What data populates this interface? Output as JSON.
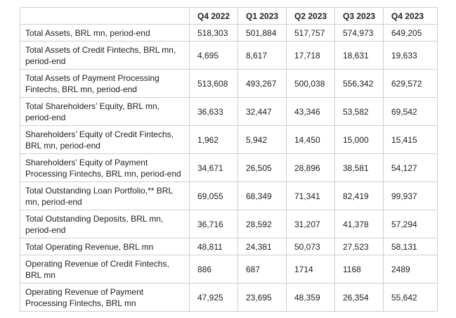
{
  "colors": {
    "background": "#ffffff",
    "grid_border": "#cbced2",
    "text": "#202124"
  },
  "table": {
    "columns": [
      "",
      "Q4 2022",
      "Q1 2023",
      "Q2 2023",
      "Q3 2023",
      "Q4 2023"
    ],
    "rows": [
      {
        "label": "Total Assets, BRL mn, period-end",
        "values": [
          "518,303",
          "501,884",
          "517,757",
          "574,973",
          "649,205"
        ]
      },
      {
        "label": "Total Assets of Credit Fintechs, BRL mn, period-end",
        "values": [
          "4,695",
          "8,617",
          "17,718",
          "18,631",
          "19,633"
        ]
      },
      {
        "label": "Total Assets of Payment Processing Fintechs, BRL mn, period-end",
        "values": [
          "513,608",
          "493,267",
          "500,038",
          "556,342",
          "629,572"
        ]
      },
      {
        "label": "Total Shareholders’ Equity, BRL mn, period-end",
        "values": [
          "36,633",
          "32,447",
          "43,346",
          "53,582",
          "69,542"
        ]
      },
      {
        "label": "Shareholders’ Equity of Credit Fintechs, BRL mn, period-end",
        "values": [
          "1,962",
          "5,942",
          "14,450",
          "15,000",
          "15,415"
        ]
      },
      {
        "label": "Shareholders’ Equity of Payment Processing Fintechs, BRL mn, period-end",
        "values": [
          "34,671",
          "26,505",
          "28,896",
          "38,581",
          "54,127"
        ]
      },
      {
        "label": "Total Outstanding Loan Portfolio,** BRL mn, period-end",
        "values": [
          "69,055",
          "68,349",
          "71,341",
          "82,419",
          "99,937"
        ]
      },
      {
        "label": "Total Outstanding Deposits, BRL mn, period-end",
        "values": [
          "36,716",
          "28,592",
          "31,207",
          "41,378",
          "57,294"
        ]
      },
      {
        "label": "Total Operating Revenue, BRL mn",
        "values": [
          "48,811",
          "24,381",
          "50,073",
          "27,523",
          "58,131"
        ]
      },
      {
        "label": "Operating Revenue of Credit Fintechs, BRL mn",
        "values": [
          "886",
          "687",
          "1714",
          "1168",
          "2489"
        ]
      },
      {
        "label": "Operating Revenue of Payment Processing Fintechs, BRL mn",
        "values": [
          "47,925",
          "23,695",
          "48,359",
          "26,354",
          "55,642"
        ]
      }
    ]
  },
  "chart_data": {
    "type": "table",
    "categories": [
      "Q4 2022",
      "Q1 2023",
      "Q2 2023",
      "Q3 2023",
      "Q4 2023"
    ],
    "series": [
      {
        "name": "Total Assets, BRL mn, period-end",
        "values": [
          518303,
          501884,
          517757,
          574973,
          649205
        ]
      },
      {
        "name": "Total Assets of Credit Fintechs, BRL mn, period-end",
        "values": [
          4695,
          8617,
          17718,
          18631,
          19633
        ]
      },
      {
        "name": "Total Assets of Payment Processing Fintechs, BRL mn, period-end",
        "values": [
          513608,
          493267,
          500038,
          556342,
          629572
        ]
      },
      {
        "name": "Total Shareholders’ Equity, BRL mn, period-end",
        "values": [
          36633,
          32447,
          43346,
          53582,
          69542
        ]
      },
      {
        "name": "Shareholders’ Equity of Credit Fintechs, BRL mn, period-end",
        "values": [
          1962,
          5942,
          14450,
          15000,
          15415
        ]
      },
      {
        "name": "Shareholders’ Equity of Payment Processing Fintechs, BRL mn, period-end",
        "values": [
          34671,
          26505,
          28896,
          38581,
          54127
        ]
      },
      {
        "name": "Total Outstanding Loan Portfolio,** BRL mn, period-end",
        "values": [
          69055,
          68349,
          71341,
          82419,
          99937
        ]
      },
      {
        "name": "Total Outstanding Deposits, BRL mn, period-end",
        "values": [
          36716,
          28592,
          31207,
          41378,
          57294
        ]
      },
      {
        "name": "Total Operating Revenue, BRL mn",
        "values": [
          48811,
          24381,
          50073,
          27523,
          58131
        ]
      },
      {
        "name": "Operating Revenue of Credit Fintechs, BRL mn",
        "values": [
          886,
          687,
          1714,
          1168,
          2489
        ]
      },
      {
        "name": "Operating Revenue of Payment Processing Fintechs, BRL mn",
        "values": [
          47925,
          23695,
          48359,
          26354,
          55642
        ]
      }
    ]
  }
}
